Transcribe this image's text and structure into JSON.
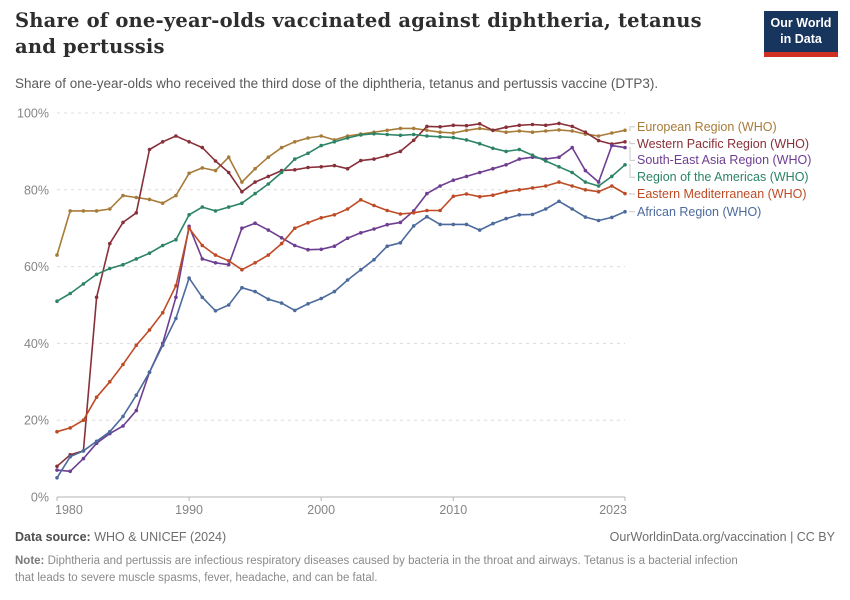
{
  "header": {
    "title": "Share of one-year-olds vaccinated against diphtheria, tetanus and pertussis",
    "subtitle": "Share of one-year-olds who received the third dose of the diphtheria, tetanus and pertussis vaccine (DTP3).",
    "logo_line1": "Our World",
    "logo_line2": "in Data",
    "logo_bg": "#18355e",
    "logo_bar": "#d02f21"
  },
  "chart_data": {
    "type": "line",
    "title": "Share of one-year-olds vaccinated against diphtheria, tetanus and pertussis",
    "xlabel": "",
    "ylabel": "",
    "ylim": [
      0,
      100
    ],
    "xlim": [
      1980,
      2023
    ],
    "grid": "horizontal-dashed",
    "legend_position": "right",
    "y_tick_labels": [
      "0%",
      "20%",
      "40%",
      "60%",
      "80%",
      "100%"
    ],
    "y_tick_values": [
      0,
      20,
      40,
      60,
      80,
      100
    ],
    "x_tick_labels": [
      "1980",
      "1990",
      "2000",
      "2010",
      "2023"
    ],
    "x_tick_values": [
      1980,
      1990,
      2000,
      2010,
      2023
    ],
    "x": [
      1980,
      1981,
      1982,
      1983,
      1984,
      1985,
      1986,
      1987,
      1988,
      1989,
      1990,
      1991,
      1992,
      1993,
      1994,
      1995,
      1996,
      1997,
      1998,
      1999,
      2000,
      2001,
      2002,
      2003,
      2004,
      2005,
      2006,
      2007,
      2008,
      2009,
      2010,
      2011,
      2012,
      2013,
      2014,
      2015,
      2016,
      2017,
      2018,
      2019,
      2020,
      2021,
      2022,
      2023
    ],
    "series": [
      {
        "name": "European Region (WHO)",
        "color": "#a77b39",
        "values": [
          63,
          74.5,
          74.5,
          74.5,
          75,
          78.5,
          78,
          77.5,
          76.5,
          78.5,
          84.3,
          85.7,
          85,
          88.5,
          82,
          85.5,
          88.5,
          91,
          92.5,
          93.5,
          94,
          93,
          94,
          94.5,
          95,
          95.5,
          96,
          96,
          95.5,
          95,
          94.8,
          95.5,
          96,
          95.5,
          95,
          95.3,
          95,
          95.3,
          95.6,
          95.3,
          94.5,
          94,
          94.8,
          95.5
        ]
      },
      {
        "name": "Western Pacific Region (WHO)",
        "color": "#883039",
        "values": [
          8,
          11,
          12,
          52,
          66,
          71.5,
          74,
          90.5,
          92.5,
          94,
          92.5,
          91,
          87.5,
          84.5,
          79.5,
          82,
          83.5,
          85,
          85.2,
          85.8,
          86,
          86.3,
          85.5,
          87.6,
          88,
          88.9,
          90,
          92.9,
          96.5,
          96.4,
          96.8,
          96.7,
          97.2,
          95.5,
          96.3,
          96.8,
          97,
          96.8,
          97.3,
          96.5,
          95,
          92.8,
          91.9,
          92.5
        ]
      },
      {
        "name": "South-East Asia Region (WHO)",
        "color": "#6d3e91",
        "values": [
          7,
          6.7,
          10,
          14,
          16.5,
          18.5,
          22.5,
          32.5,
          40,
          52,
          70.5,
          62,
          61,
          60.5,
          70,
          71.3,
          69.5,
          67.5,
          65.5,
          64.4,
          64.5,
          65.3,
          67.4,
          68.8,
          69.8,
          70.9,
          71.5,
          74.5,
          79,
          81,
          82.5,
          83.5,
          84.5,
          85.5,
          86.5,
          88,
          88.5,
          88,
          88.5,
          91,
          85,
          82,
          91.5,
          91
        ]
      },
      {
        "name": "Region of the Americas (WHO)",
        "color": "#2c8465",
        "values": [
          51,
          53,
          55.5,
          58,
          59.5,
          60.5,
          62,
          63.5,
          65.5,
          67,
          73.5,
          75.5,
          74.5,
          75.5,
          76.5,
          79,
          81.5,
          84.5,
          88,
          89.5,
          91.5,
          92.5,
          93.5,
          94.3,
          94.6,
          94.4,
          94.2,
          94.4,
          94,
          93.8,
          93.6,
          93,
          92,
          90.8,
          90,
          90.5,
          89,
          87.5,
          86,
          84.5,
          82,
          81,
          83.5,
          86.5
        ]
      },
      {
        "name": "Eastern Mediterranean (WHO)",
        "color": "#be4b25",
        "values": [
          17,
          18,
          20,
          26,
          30,
          34.5,
          39.5,
          43.5,
          48,
          55,
          70,
          65.5,
          63,
          61.5,
          59.2,
          61,
          63,
          66,
          70,
          71.4,
          72.7,
          73.5,
          75,
          77.4,
          75.9,
          74.6,
          73.7,
          74,
          74.6,
          74.6,
          78.3,
          78.9,
          78.2,
          78.6,
          79.5,
          80,
          80.5,
          81,
          82,
          81,
          80,
          79.5,
          81,
          79
        ]
      },
      {
        "name": "African Region (WHO)",
        "color": "#4c6a9c",
        "values": [
          5,
          10.5,
          12,
          14.5,
          17,
          21,
          26.5,
          32.5,
          39.5,
          46.5,
          57,
          52,
          48.5,
          50,
          54.5,
          53.5,
          51.5,
          50.5,
          48.6,
          50.3,
          51.7,
          53.5,
          56.5,
          59.2,
          61.8,
          65.3,
          66.2,
          70.6,
          73,
          71,
          71,
          71,
          69.5,
          71.2,
          72.5,
          73.5,
          73.6,
          75,
          77,
          75,
          72.9,
          72,
          72.8,
          74.3
        ]
      }
    ]
  },
  "footer": {
    "datasource_label": "Data source:",
    "datasource_value": " WHO & UNICEF (2024)",
    "link": "OurWorldinData.org/vaccination | CC BY",
    "note_label": "Note:",
    "note_text": " Diphtheria and pertussis are infectious respiratory diseases caused by bacteria in the throat and airways. Tetanus is a bacterial infection that leads to severe muscle spasms, fever, headache, and can be fatal."
  }
}
